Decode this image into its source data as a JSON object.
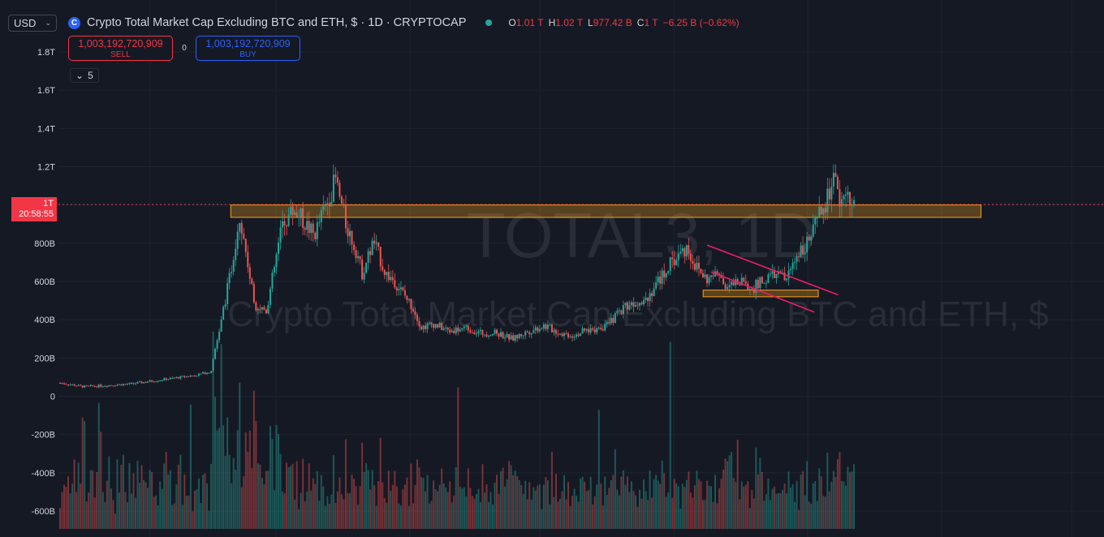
{
  "header": {
    "currency": "USD",
    "symbol_icon": "cryptocap-icon",
    "title": "Crypto Total Market Cap Excluding BTC and ETH, $ · 1D · CRYPTOCAP",
    "ohlc": {
      "o_label": "O",
      "o_value": "1.01 T",
      "h_label": "H",
      "h_value": "1.02 T",
      "l_label": "L",
      "l_value": "977.42 B",
      "c_label": "C",
      "c_value": "1 T",
      "change": "−6.25 B (−0.62%)"
    }
  },
  "trade": {
    "sell_price": "1,003,192,720,909",
    "sell_label": "SELL",
    "spread": "0",
    "buy_price": "1,003,192,720,909",
    "buy_label": "BUY"
  },
  "indicators": {
    "count": "5"
  },
  "price_tag": {
    "value": "1T",
    "countdown": "20:58:55"
  },
  "watermark": {
    "line1": "TOTAL3, 1D",
    "line2": "Crypto Total Market Cap Excluding BTC and ETH, $"
  },
  "colors": {
    "up": "#26a69a",
    "down": "#ef5350",
    "bg": "#151924",
    "zone": "#f7a21b",
    "trend": "#e91e63"
  },
  "chart_data": {
    "type": "line",
    "y_axis_ticks": [
      "1.8T",
      "1.6T",
      "1.4T",
      "1.2T",
      "1T",
      "800B",
      "600B",
      "400B",
      "200B",
      "0",
      "-200B",
      "-400B",
      "-600B"
    ],
    "y_units": "B",
    "ylim": [
      -680,
      1880
    ],
    "current_price": 1003,
    "series": [
      {
        "x": [
          0,
          0.03,
          0.09,
          0.17,
          0.19,
          0.215,
          0.226,
          0.245,
          0.26,
          0.28,
          0.295,
          0.32,
          0.347,
          0.36,
          0.375,
          0.38,
          0.395,
          0.41,
          0.42,
          0.445,
          0.455,
          0.47,
          0.49,
          0.51,
          0.53,
          0.55,
          0.57,
          0.59,
          0.61,
          0.63,
          0.645,
          0.66,
          0.69,
          0.71,
          0.74,
          0.77,
          0.79,
          0.8,
          0.815,
          0.83,
          0.84,
          0.855,
          0.87,
          0.885,
          0.9,
          0.915,
          0.93,
          0.945,
          0.955,
          0.965,
          0.975,
          0.985,
          0.993,
          1.0
        ],
        "y": [
          70,
          50,
          65,
          110,
          130,
          650,
          950,
          480,
          450,
          900,
          980,
          840,
          1130,
          900,
          740,
          640,
          810,
          640,
          610,
          460,
          360,
          380,
          340,
          360,
          330,
          330,
          300,
          340,
          370,
          330,
          320,
          340,
          370,
          470,
          520,
          700,
          780,
          680,
          610,
          640,
          570,
          600,
          560,
          600,
          640,
          610,
          760,
          820,
          930,
          1010,
          1150,
          990,
          1040,
          1003
        ]
      }
    ],
    "volume_baseline": -680,
    "zones": [
      {
        "label": "resistance",
        "y_top": 1000,
        "y_bottom": 935,
        "x_start": 0.215,
        "x_end": 1.16
      },
      {
        "label": "support",
        "y_top": 555,
        "y_bottom": 520,
        "x_start": 0.81,
        "x_end": 0.955
      }
    ],
    "trend_channel": [
      {
        "x1": 0.815,
        "y1": 790,
        "x2": 0.98,
        "y2": 530
      },
      {
        "x1": 0.82,
        "y1": 650,
        "x2": 0.95,
        "y2": 440
      }
    ],
    "grid": true
  }
}
